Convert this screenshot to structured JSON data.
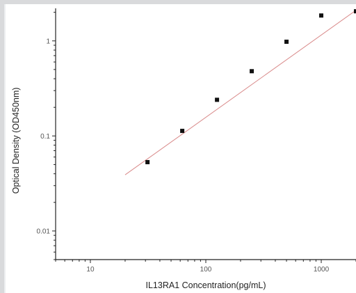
{
  "chart_data": {
    "type": "scatter",
    "title": "",
    "xlabel": "IL13RA1 Concentration(pg/mL)",
    "ylabel": "Optical Density (OD450nm)",
    "x_scale": "log",
    "y_scale": "log",
    "xlim": [
      5,
      2000
    ],
    "ylim": [
      0.005,
      2.2
    ],
    "x_ticks": [
      10,
      100,
      1000
    ],
    "x_tick_labels": [
      "10",
      "100",
      "1000"
    ],
    "y_ticks": [
      0.01,
      0.1,
      1
    ],
    "y_tick_labels": [
      "0.01",
      "0.1",
      "1"
    ],
    "grid": false,
    "legend": "none",
    "series": [
      {
        "style": "markers",
        "x": [
          31.25,
          62.5,
          125,
          250,
          500,
          1000,
          2000
        ],
        "y": [
          0.053,
          0.113,
          0.24,
          0.48,
          0.98,
          1.85,
          2.05
        ]
      },
      {
        "style": "fit-line",
        "x": [
          20,
          2000
        ],
        "y": [
          0.039,
          2.1
        ]
      }
    ],
    "colors": {
      "markers": "#111111",
      "fit_line": "#d98a8a",
      "axis": "#222222"
    }
  }
}
